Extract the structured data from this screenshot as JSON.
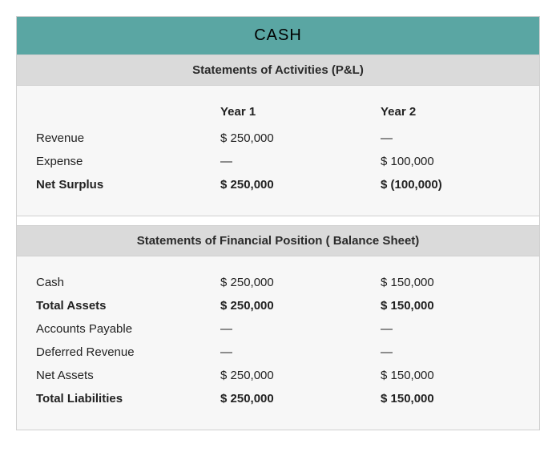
{
  "title": "CASH",
  "colors": {
    "title_bg": "#5aa6a3",
    "section_header_bg": "#dadada",
    "body_bg": "#f7f7f7",
    "border": "#d0d0d0"
  },
  "sections": [
    {
      "header": "Statements of Activities (P&L)",
      "columns": [
        "Year 1",
        "Year 2"
      ],
      "rows": [
        {
          "label": "Revenue",
          "col1": "$ 250,000",
          "col2": "—",
          "bold": false
        },
        {
          "label": "Expense",
          "col1": "—",
          "col2": "$ 100,000",
          "bold": false
        },
        {
          "label": "Net Surplus",
          "col1": "$ 250,000",
          "col2": "$ (100,000)",
          "bold": true
        }
      ]
    },
    {
      "header": "Statements of Financial Position ( Balance Sheet)",
      "columns": null,
      "rows": [
        {
          "label": "Cash",
          "col1": "$ 250,000",
          "col2": "$ 150,000",
          "bold": false
        },
        {
          "label": "Total Assets",
          "col1": "$ 250,000",
          "col2": "$ 150,000",
          "bold": true
        },
        {
          "label": "Accounts Payable",
          "col1": "—",
          "col2": "—",
          "bold": false
        },
        {
          "label": "Deferred Revenue",
          "col1": "—",
          "col2": "—",
          "bold": false
        },
        {
          "label": "Net Assets",
          "col1": "$ 250,000",
          "col2": "$ 150,000",
          "bold": false
        },
        {
          "label": "Total Liabilities",
          "col1": "$ 250,000",
          "col2": "$ 150,000",
          "bold": true
        }
      ]
    }
  ]
}
